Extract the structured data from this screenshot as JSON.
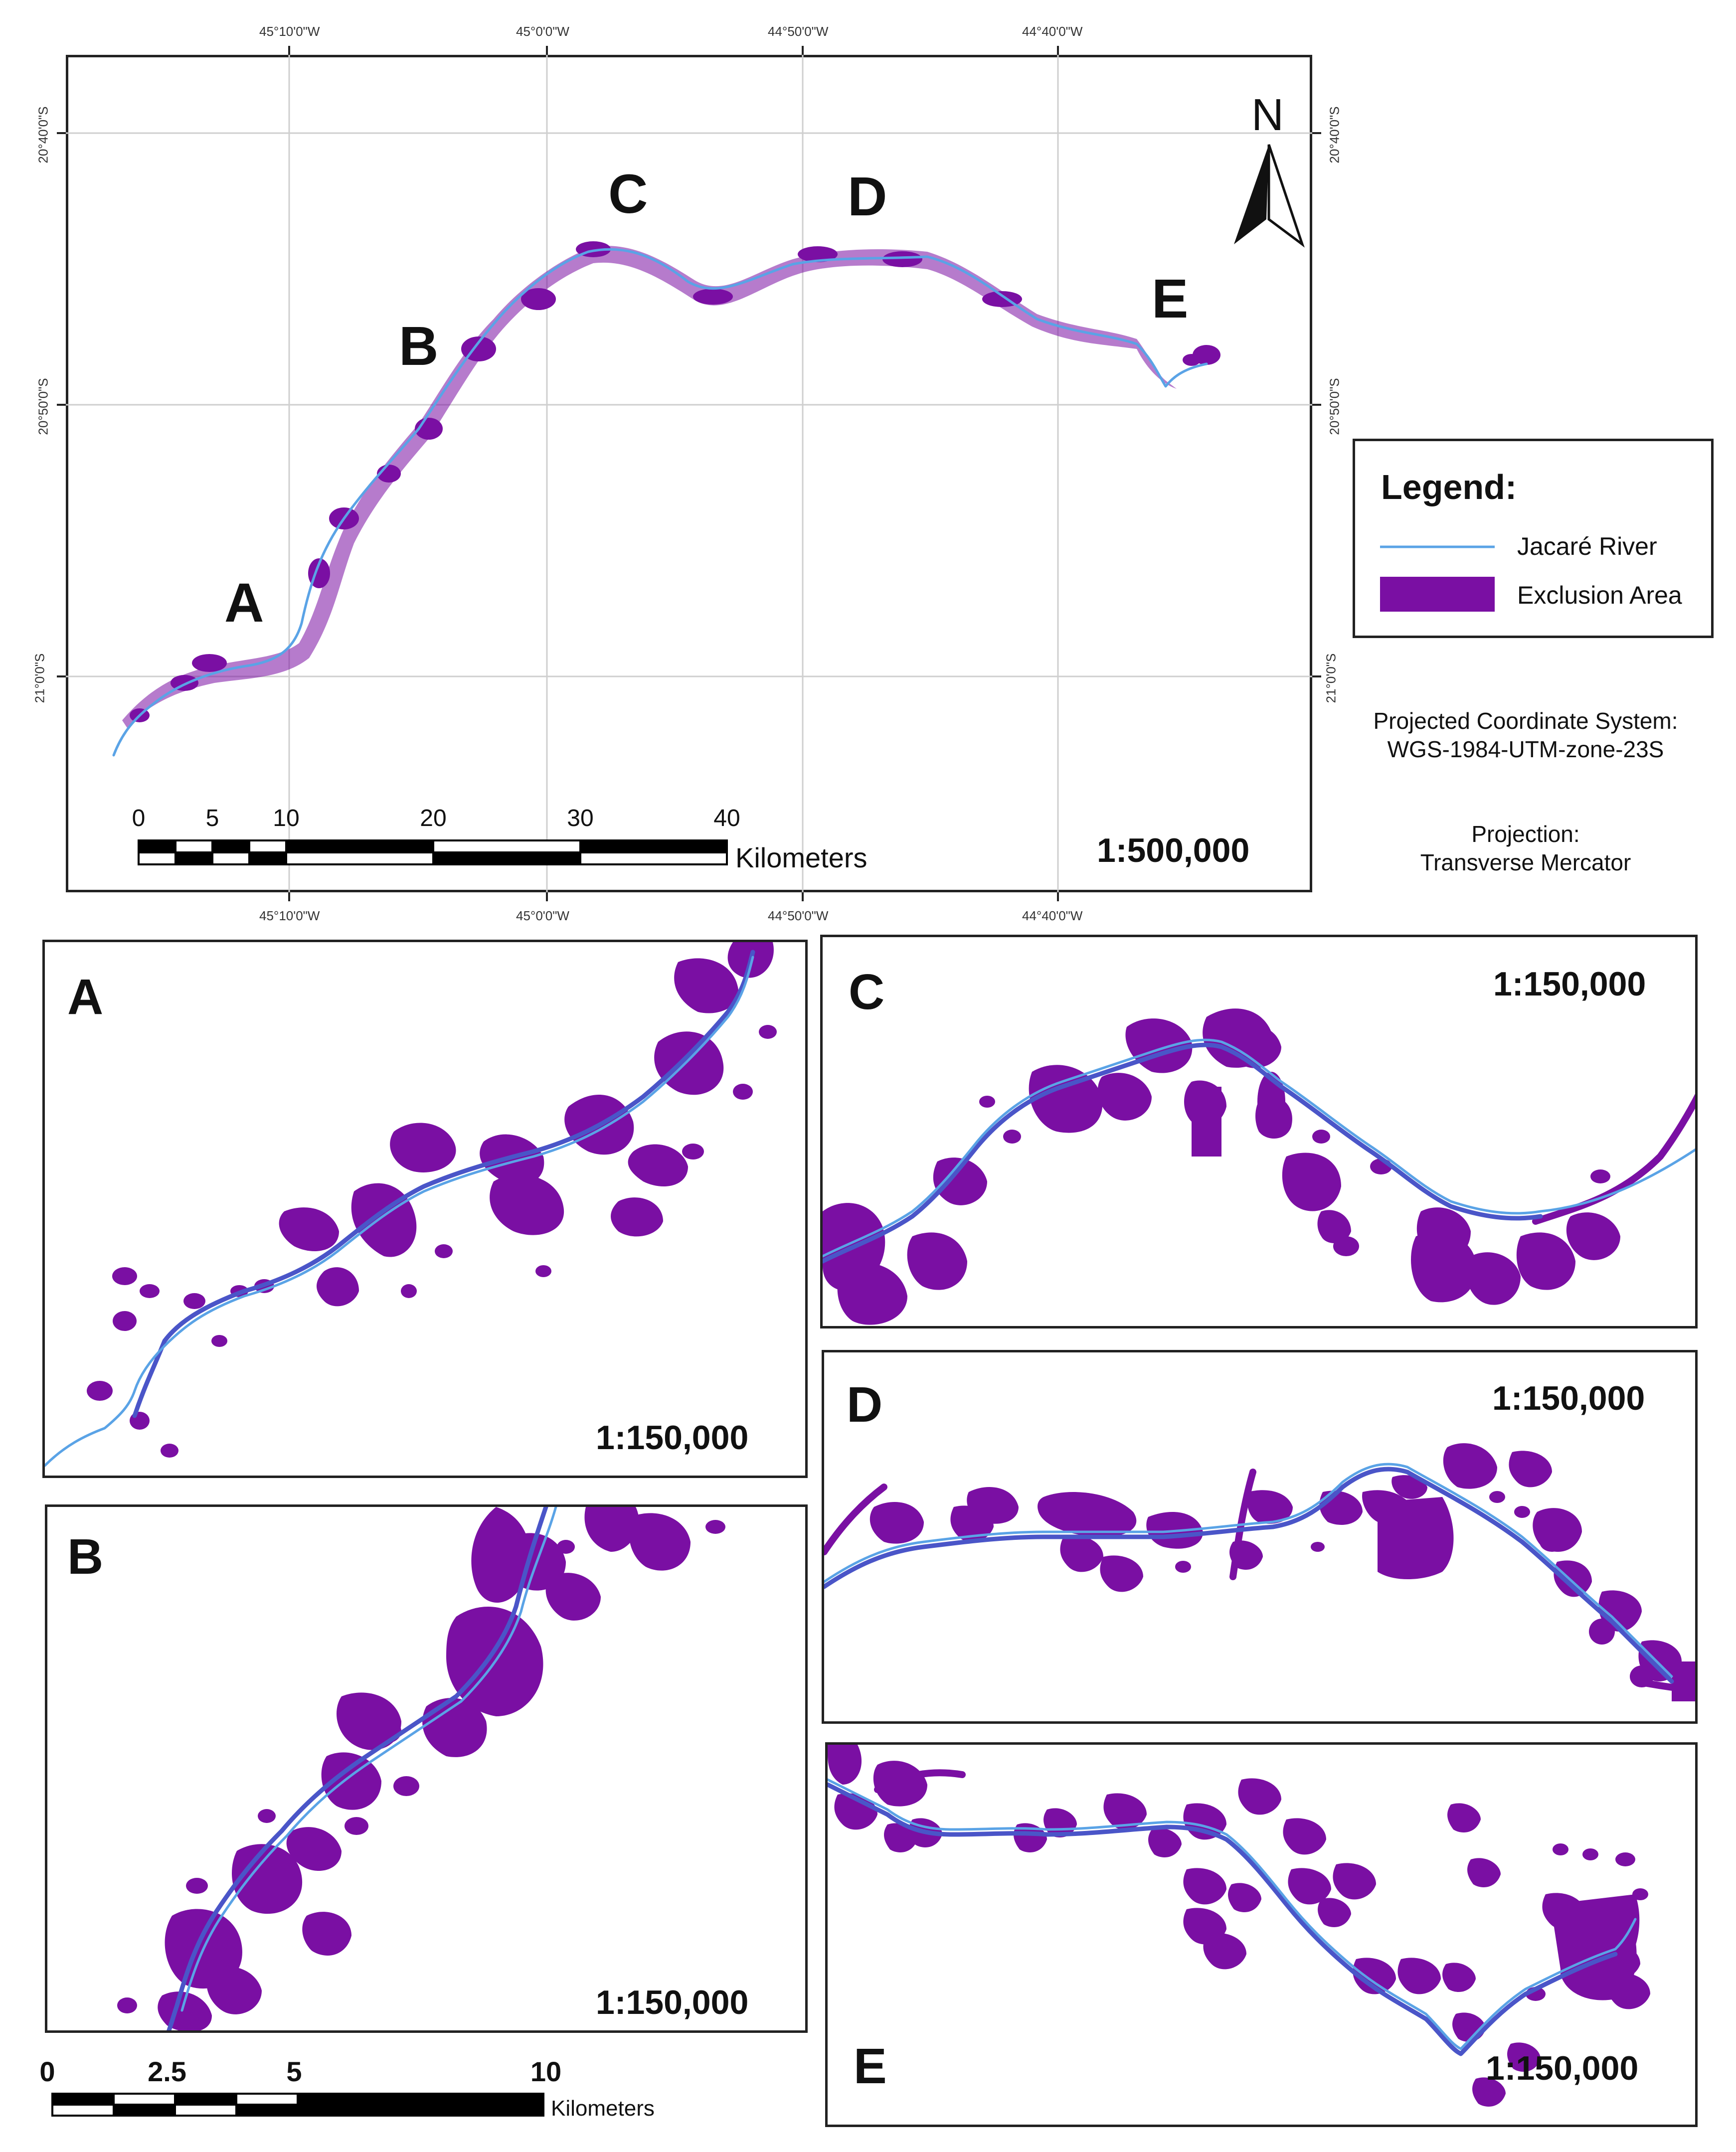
{
  "main_map": {
    "lon_labels": [
      "45°10'0\"W",
      "45°0'0\"W",
      "44°50'0\"W",
      "44°40'0\"W"
    ],
    "lat_labels": [
      "20°40'0\"S",
      "20°50'0\"S",
      "21°0'0\"S"
    ],
    "site_labels": [
      "A",
      "B",
      "C",
      "D",
      "E"
    ],
    "north_label": "N",
    "scale_ticks": [
      "0",
      "5",
      "10",
      "20",
      "30",
      "40"
    ],
    "scale_unit": "Kilometers",
    "scale_ratio": "1:500,000"
  },
  "legend": {
    "title": "Legend:",
    "items": [
      {
        "label": "Jacaré River",
        "color": "#5aa3e6"
      },
      {
        "label": "Exclusion Area",
        "color": "#7a0fa3"
      }
    ]
  },
  "projection_info": {
    "coord_system_label": "Projected Coordinate System:",
    "coord_system_value": "WGS-1984-UTM-zone-23S",
    "projection_label": "Projection:",
    "projection_value": "Transverse Mercator"
  },
  "insets": [
    {
      "letter": "A",
      "scale": "1:150,000"
    },
    {
      "letter": "B",
      "scale": "1:150,000"
    },
    {
      "letter": "C",
      "scale": "1:150,000"
    },
    {
      "letter": "D",
      "scale": "1:150,000"
    },
    {
      "letter": "E",
      "scale": "1:150,000"
    }
  ],
  "inset_scale_bar": {
    "ticks": [
      "0",
      "2.5",
      "5",
      "10"
    ],
    "unit": "Kilometers"
  },
  "colors": {
    "river": "#5aa3e6",
    "river_dark": "#4a55c8",
    "exclusion": "#7a0fa3"
  }
}
